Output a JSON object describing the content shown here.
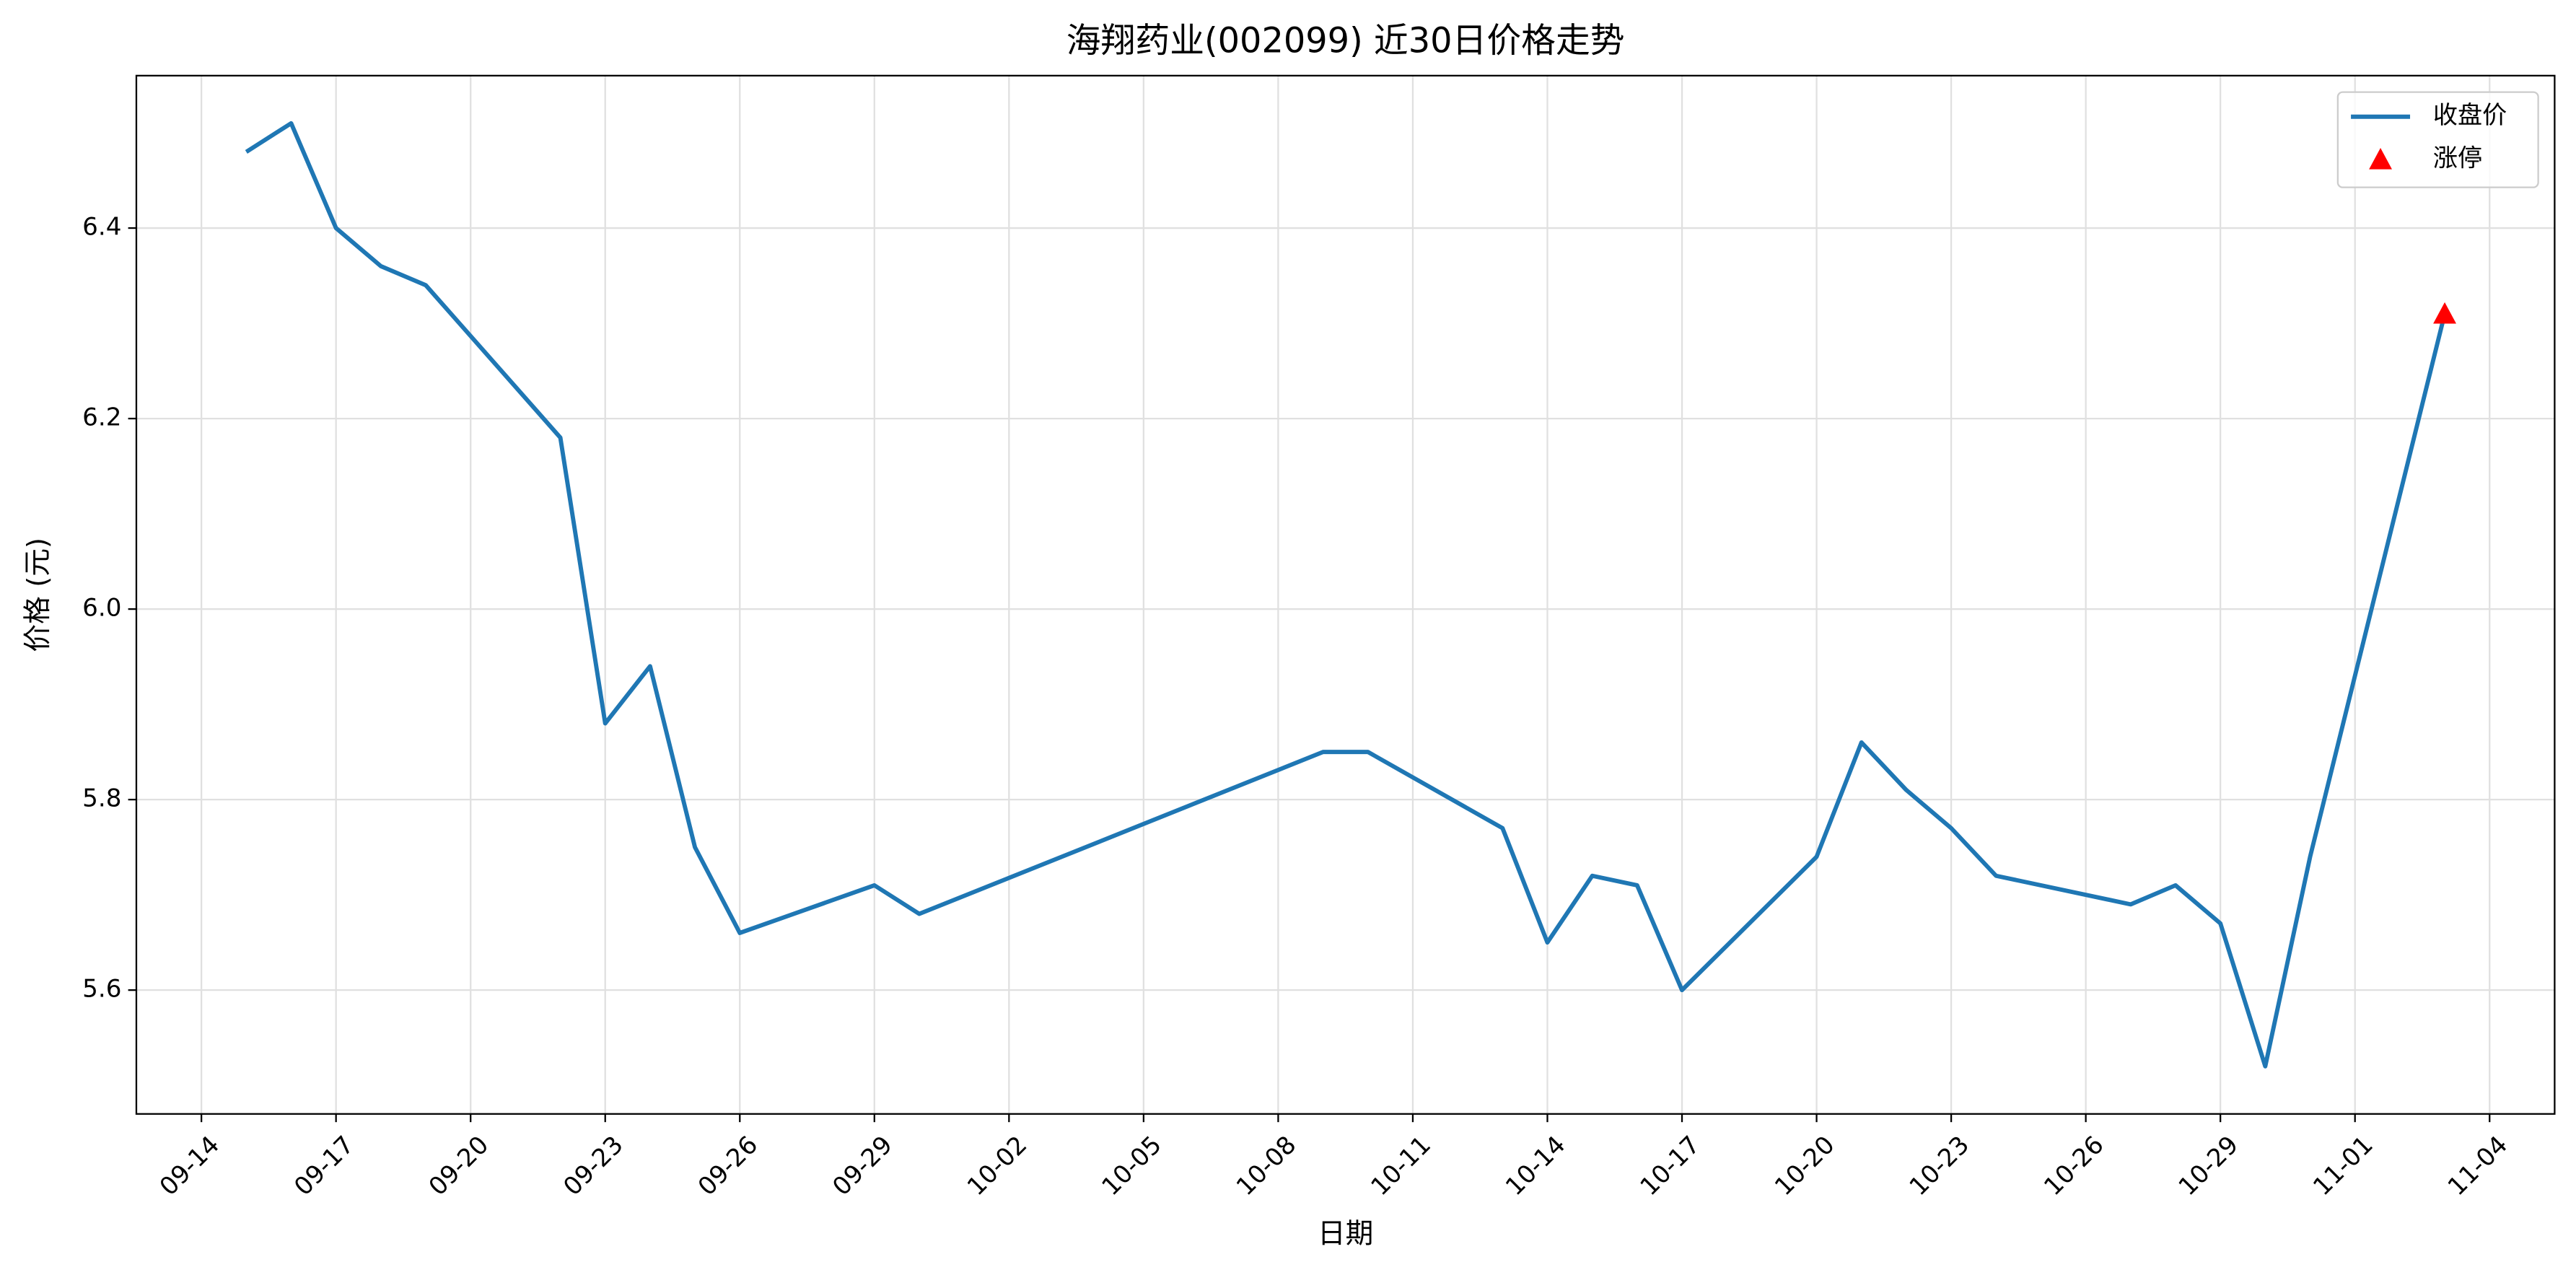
{
  "chart_data": {
    "type": "line",
    "title": "海翔药业(002099) 近30日价格走势",
    "x_label": "日期",
    "y_label": "价格 (元)",
    "x": [
      "09-15",
      "09-16",
      "09-17",
      "09-18",
      "09-19",
      "09-22",
      "09-23",
      "09-24",
      "09-25",
      "09-26",
      "09-29",
      "09-30",
      "10-09",
      "10-10",
      "10-13",
      "10-14",
      "10-15",
      "10-16",
      "10-17",
      "10-20",
      "10-21",
      "10-22",
      "10-23",
      "10-24",
      "10-27",
      "10-28",
      "10-29",
      "10-30",
      "10-31",
      "11-03"
    ],
    "series": [
      {
        "name": "收盘价",
        "color": "#1f77b4",
        "values": [
          6.48,
          6.51,
          6.4,
          6.36,
          6.34,
          6.18,
          5.88,
          5.94,
          5.75,
          5.66,
          5.71,
          5.68,
          5.85,
          5.85,
          5.77,
          5.65,
          5.72,
          5.71,
          5.6,
          5.74,
          5.86,
          5.81,
          5.77,
          5.72,
          5.69,
          5.71,
          5.67,
          5.52,
          5.74,
          6.31
        ]
      },
      {
        "name": "涨停",
        "color": "#ff0000",
        "marker": "triangle",
        "x": [
          "11-03"
        ],
        "values": [
          6.31
        ]
      }
    ],
    "xticks": [
      "09-14",
      "09-17",
      "09-20",
      "09-23",
      "09-26",
      "09-29",
      "10-02",
      "10-05",
      "10-08",
      "10-11",
      "10-14",
      "10-17",
      "10-20",
      "10-23",
      "10-26",
      "10-29",
      "11-01",
      "11-04"
    ],
    "ylim": [
      5.47,
      6.56
    ],
    "yticks": [
      5.6,
      5.8,
      {
        "value": 6,
        "label": "6.0"
      },
      6.2,
      6.4
    ],
    "grid": true,
    "legend": "upper right"
  }
}
